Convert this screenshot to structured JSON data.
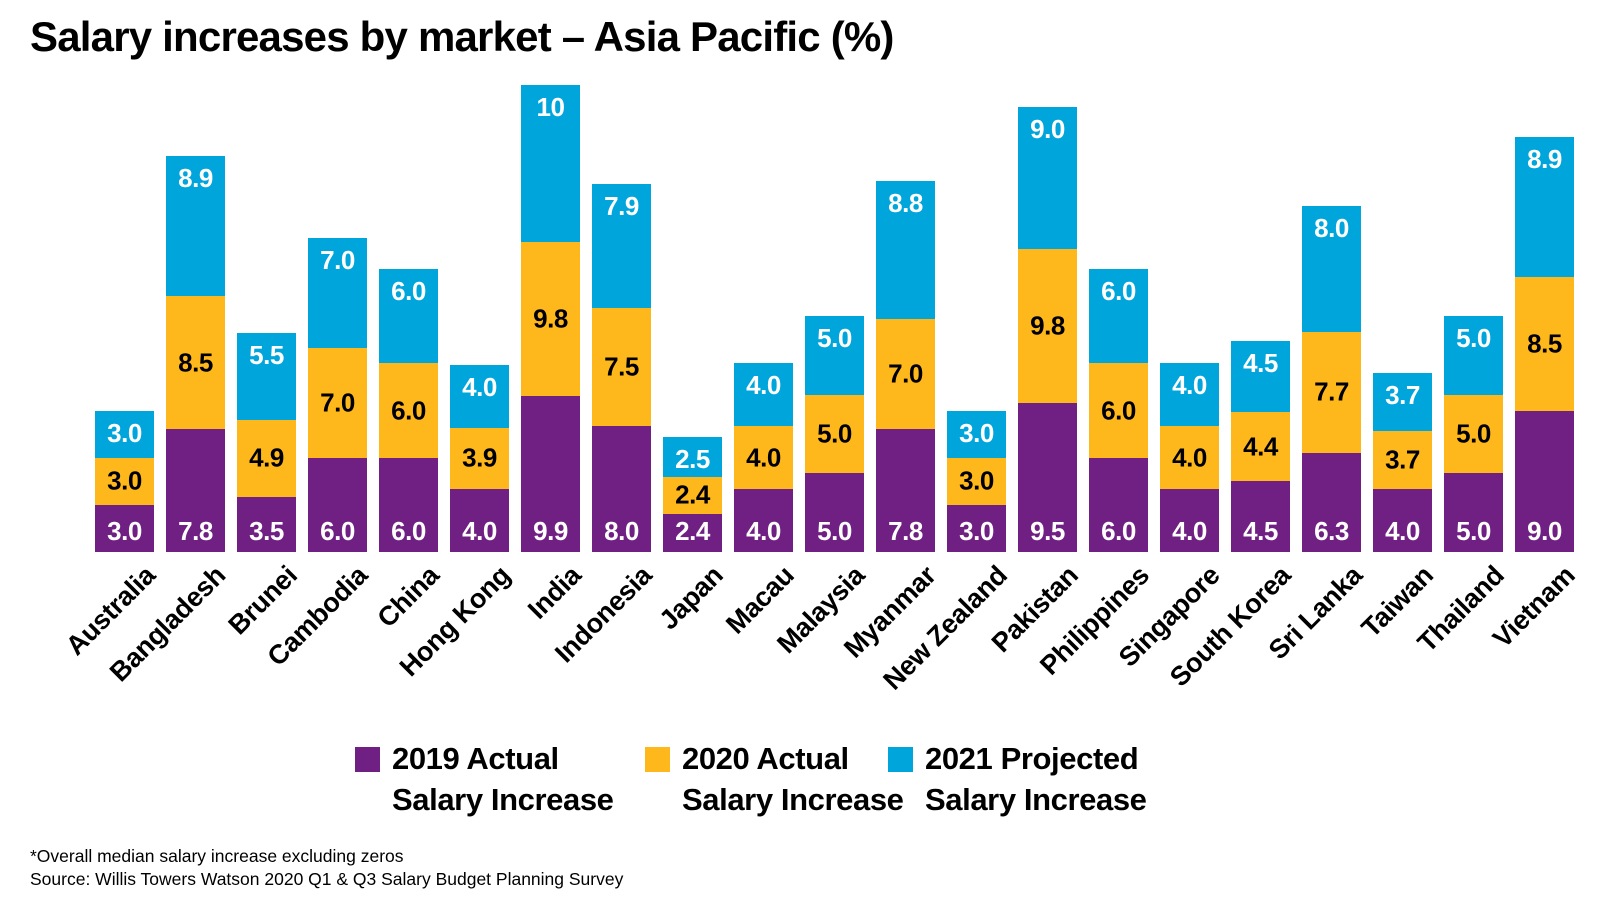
{
  "title": "Salary increases by market – Asia Pacific (%)",
  "legend": {
    "items": [
      {
        "line1": "2019 Actual",
        "line2": "Salary Increase",
        "color": "#702082"
      },
      {
        "line1": "2020 Actual",
        "line2": "Salary Increase",
        "color": "#FFB81C"
      },
      {
        "line1": "2021 Projected",
        "line2": "Salary Increase",
        "color": "#00A5DC"
      }
    ]
  },
  "footnotes": {
    "note": "*Overall median salary increase excluding zeros",
    "source": "Source: Willis Towers Watson 2020 Q1 & Q3 Salary Budget Planning Survey"
  },
  "chart_data": {
    "type": "bar",
    "variant": "stacked-column",
    "title": "Salary increases by market – Asia Pacific (%)",
    "unit": "%",
    "gridlines": false,
    "y_axis_visible": false,
    "x_label_rotation_deg": -45,
    "legend_position": "bottom",
    "categories": [
      "Australia",
      "Bangladesh",
      "Brunei",
      "Cambodia",
      "China",
      "Hong Kong",
      "India",
      "Indonesia",
      "Japan",
      "Macau",
      "Malaysia",
      "Myanmar",
      "New Zealand",
      "Pakistan",
      "Philippines",
      "Singapore",
      "South Korea",
      "Sri Lanka",
      "Taiwan",
      "Thailand",
      "Vietnam"
    ],
    "series": [
      {
        "name": "2019 Actual Salary Increase",
        "key": "2019-actual",
        "color": "#702082",
        "label_color": "#FFFFFF",
        "label_position": "inside-bottom",
        "values": [
          3.0,
          7.8,
          3.5,
          6.0,
          6.0,
          4.0,
          9.9,
          8.0,
          2.4,
          4.0,
          5.0,
          7.8,
          3.0,
          9.5,
          6.0,
          4.0,
          4.5,
          6.3,
          4.0,
          5.0,
          9.0
        ],
        "labels": [
          "3.0",
          "7.8",
          "3.5",
          "6.0",
          "6.0",
          "4.0",
          "9.9",
          "8.0",
          "2.4",
          "4.0",
          "5.0",
          "7.8",
          "3.0",
          "9.5",
          "6.0",
          "4.0",
          "4.5",
          "6.3",
          "4.0",
          "5.0",
          "9.0"
        ]
      },
      {
        "name": "2020 Actual Salary Increase",
        "key": "2020-actual",
        "color": "#FFB81C",
        "label_color": "#000000",
        "label_position": "inside-center",
        "values": [
          3.0,
          8.5,
          4.9,
          7.0,
          6.0,
          3.9,
          9.8,
          7.5,
          2.4,
          4.0,
          5.0,
          7.0,
          3.0,
          9.8,
          6.0,
          4.0,
          4.4,
          7.7,
          3.7,
          5.0,
          8.5
        ],
        "labels": [
          "3.0",
          "8.5",
          "4.9",
          "7.0",
          "6.0",
          "3.9",
          "9.8",
          "7.5",
          "2.4",
          "4.0",
          "5.0",
          "7.0",
          "3.0",
          "9.8",
          "6.0",
          "4.0",
          "4.4",
          "7.7",
          "3.7",
          "5.0",
          "8.5"
        ]
      },
      {
        "name": "2021 Projected Salary Increase",
        "key": "2021-projected",
        "color": "#00A5DC",
        "label_color": "#FFFFFF",
        "label_position": "inside-top",
        "values": [
          3.0,
          8.9,
          5.5,
          7.0,
          6.0,
          4.0,
          10,
          7.9,
          2.5,
          4.0,
          5.0,
          8.8,
          3.0,
          9.0,
          6.0,
          4.0,
          4.5,
          8.0,
          3.7,
          5.0,
          8.9
        ],
        "labels": [
          "3.0",
          "8.9",
          "5.5",
          "7.0",
          "6.0",
          "4.0",
          "10",
          "7.9",
          "2.5",
          "4.0",
          "5.0",
          "8.8",
          "3.0",
          "9.0",
          "6.0",
          "4.0",
          "4.5",
          "8.0",
          "3.7",
          "5.0",
          "8.9"
        ]
      }
    ]
  }
}
